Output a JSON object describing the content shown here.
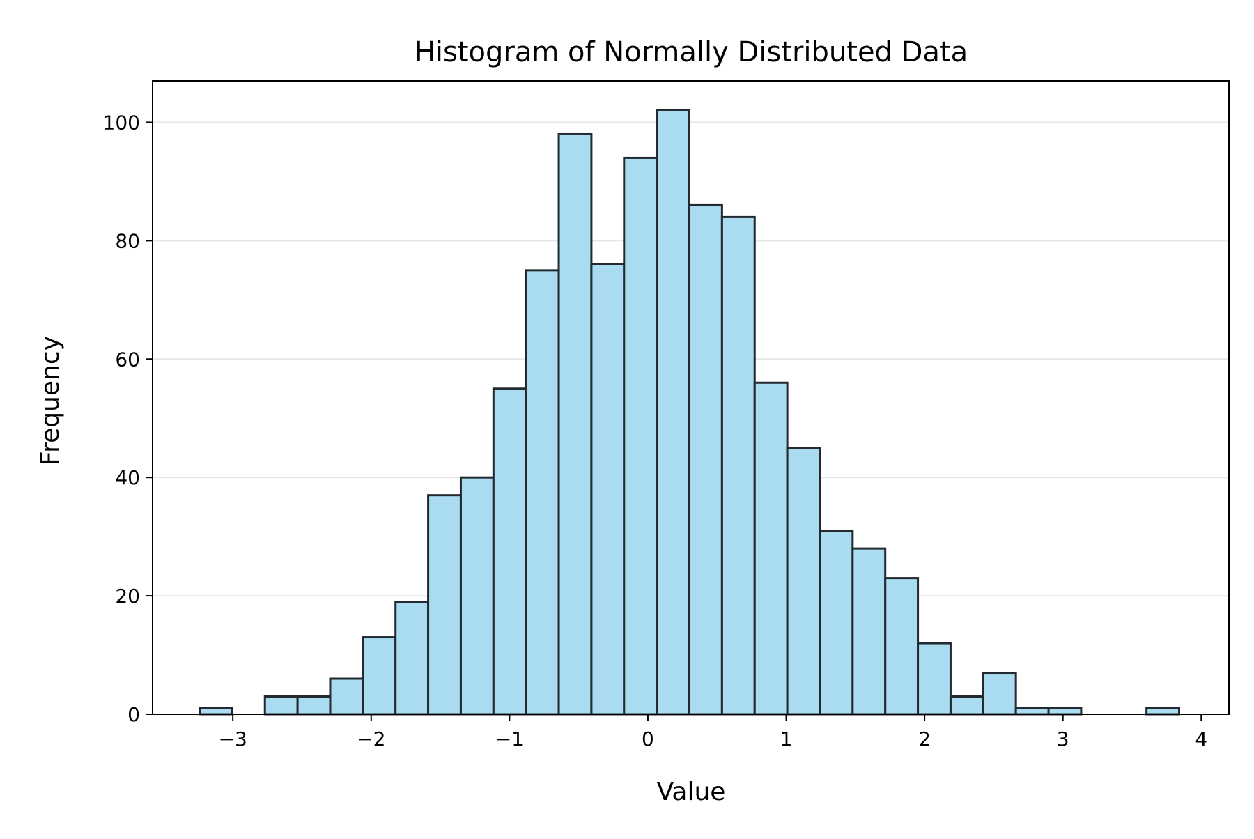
{
  "colors": {
    "bar_fill": "#a9dcf0",
    "bar_edge": "#222a30",
    "grid": "#e6e6e6",
    "axis": "#000000",
    "background": "#ffffff"
  },
  "chart_data": {
    "type": "bar",
    "subtype": "histogram",
    "title": "Histogram of Normally Distributed Data",
    "xlabel": "Value",
    "ylabel": "Frequency",
    "xlim": [
      -3.58,
      4.2
    ],
    "ylim": [
      0,
      107
    ],
    "grid": {
      "y": true,
      "x": false
    },
    "legend": null,
    "x_ticks": [
      -3,
      -2,
      -1,
      0,
      1,
      2,
      3,
      4
    ],
    "x_tick_labels": [
      "−3",
      "−2",
      "−1",
      "0",
      "1",
      "2",
      "3",
      "4"
    ],
    "y_ticks": [
      0,
      20,
      40,
      60,
      80,
      100
    ],
    "y_tick_labels": [
      "0",
      "20",
      "40",
      "60",
      "80",
      "100"
    ],
    "bins": {
      "start": -3.24,
      "width": 0.236,
      "counts": [
        1,
        0,
        3,
        3,
        6,
        13,
        19,
        37,
        40,
        55,
        75,
        98,
        76,
        94,
        102,
        86,
        84,
        56,
        45,
        31,
        28,
        23,
        12,
        3,
        7,
        1,
        1,
        0,
        0,
        1
      ]
    }
  }
}
